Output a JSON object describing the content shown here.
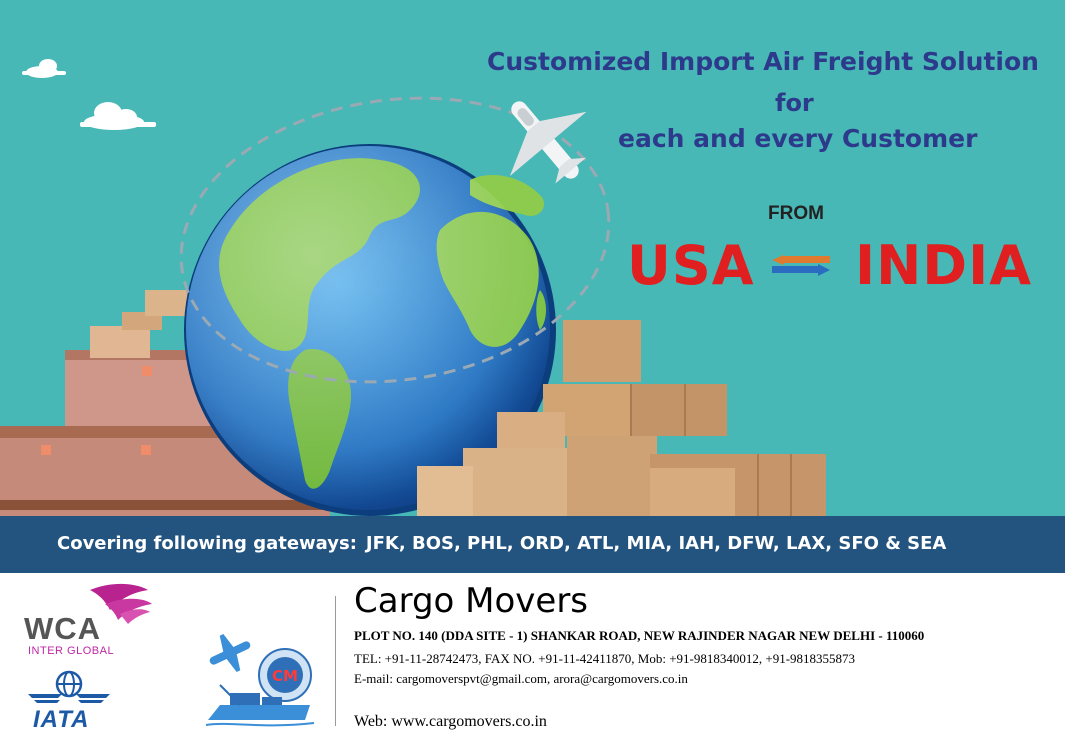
{
  "banner": {
    "headline_line1": "Customized Import Air Freight Solution",
    "headline_line2": "for",
    "headline_line3": "each and every Customer",
    "from_label": "FROM",
    "route_origin": "USA",
    "route_destination": "INDIA",
    "arrow_icon": "two-way-arrow-icon",
    "colors": {
      "background": "#47b8b5",
      "headline": "#2d3a8c",
      "route": "#e02020",
      "strip": "#23537f"
    }
  },
  "gateways": {
    "label": "Covering following gateways:",
    "codes": "JFK, BOS, PHL, ORD, ATL, MIA, IAH, DFW, LAX, SFO & SEA"
  },
  "logos": {
    "wca_text": "WCA",
    "wca_subtitle": "INTER GLOBAL",
    "iata_text": "IATA",
    "cm_text": "CM"
  },
  "company": {
    "name": "Cargo Movers",
    "address": "PLOT NO. 140 (DDA SITE - 1) SHANKAR ROAD, NEW RAJINDER NAGAR NEW DELHI - 110060",
    "tel": "TEL: +91-11-28742473, FAX NO. +91-11-42411870, Mob: +91-9818340012, +91-9818355873",
    "email": "E-mail: cargomoverspvt@gmail.com, arora@cargomovers.co.in",
    "web": "Web: www.cargomovers.co.in"
  }
}
